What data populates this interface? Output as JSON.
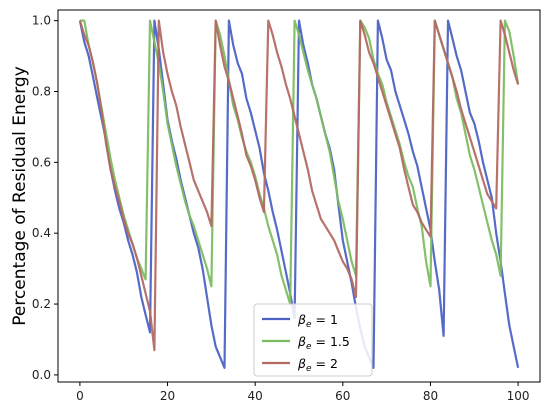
{
  "chart_data": {
    "type": "line",
    "title": "",
    "xlabel": "",
    "ylabel": "Percentage of Residual Energy",
    "xlim": [
      -5,
      105
    ],
    "ylim": [
      -0.02,
      1.03
    ],
    "xticks": [
      0,
      20,
      40,
      60,
      80,
      100
    ],
    "yticks": [
      0.0,
      0.2,
      0.4,
      0.6,
      0.8,
      1.0
    ],
    "xtick_labels": [
      "0",
      "20",
      "40",
      "60",
      "80",
      "100"
    ],
    "ytick_labels": [
      "0.0",
      "0.2",
      "0.4",
      "0.6",
      "0.8",
      "1.0"
    ],
    "grid": false,
    "legend_position": "lower-center",
    "series": [
      {
        "name": "β_e = 1",
        "legend_main": "β",
        "legend_sub": "e",
        "legend_rest": " = 1",
        "color": "#4c63c4",
        "x": [
          0,
          1,
          2,
          3,
          4,
          5,
          6,
          7,
          8,
          9,
          10,
          11,
          12,
          13,
          14,
          15,
          16,
          17,
          18,
          19,
          20,
          21,
          22,
          23,
          24,
          25,
          26,
          27,
          28,
          29,
          30,
          31,
          32,
          33,
          34,
          35,
          36,
          37,
          38,
          39,
          40,
          41,
          42,
          43,
          44,
          45,
          46,
          47,
          48,
          49,
          50,
          51,
          52,
          53,
          54,
          55,
          56,
          57,
          58,
          59,
          60,
          61,
          62,
          63,
          64,
          65,
          66,
          67,
          68,
          69,
          70,
          71,
          72,
          73,
          74,
          75,
          76,
          77,
          78,
          79,
          80,
          81,
          82,
          83,
          84,
          85,
          86,
          87,
          88,
          89,
          90,
          91,
          92,
          93,
          94,
          95,
          96,
          97,
          98,
          99,
          100
        ],
        "y": [
          1.0,
          0.94,
          0.9,
          0.84,
          0.78,
          0.72,
          0.66,
          0.58,
          0.52,
          0.47,
          0.43,
          0.38,
          0.34,
          0.29,
          0.22,
          0.17,
          0.12,
          1.0,
          0.92,
          0.82,
          0.72,
          0.66,
          0.61,
          0.55,
          0.5,
          0.45,
          0.4,
          0.36,
          0.3,
          0.22,
          0.14,
          0.08,
          0.05,
          0.02,
          1.0,
          0.93,
          0.88,
          0.85,
          0.78,
          0.74,
          0.69,
          0.64,
          0.57,
          0.52,
          0.46,
          0.41,
          0.35,
          0.29,
          0.23,
          0.16,
          1.0,
          0.93,
          0.88,
          0.82,
          0.78,
          0.73,
          0.68,
          0.64,
          0.58,
          0.48,
          0.38,
          0.32,
          0.26,
          0.19,
          0.13,
          0.08,
          0.05,
          0.02,
          1.0,
          0.95,
          0.89,
          0.86,
          0.8,
          0.76,
          0.72,
          0.68,
          0.63,
          0.59,
          0.53,
          0.47,
          0.41,
          0.32,
          0.24,
          0.11,
          1.0,
          0.95,
          0.9,
          0.86,
          0.8,
          0.74,
          0.71,
          0.66,
          0.6,
          0.55,
          0.5,
          0.4,
          0.32,
          0.23,
          0.14,
          0.08,
          0.02
        ]
      },
      {
        "name": "β_e = 1.5",
        "legend_main": "β",
        "legend_sub": "e",
        "legend_rest": " = 1.5",
        "color": "#7dbd62",
        "x": [
          0,
          1,
          2,
          3,
          4,
          5,
          6,
          7,
          8,
          9,
          10,
          11,
          12,
          13,
          14,
          15,
          16,
          17,
          18,
          19,
          20,
          21,
          22,
          23,
          24,
          25,
          26,
          27,
          28,
          29,
          30,
          31,
          32,
          33,
          34,
          35,
          36,
          37,
          38,
          39,
          40,
          41,
          42,
          43,
          44,
          45,
          46,
          47,
          48,
          49,
          50,
          51,
          52,
          53,
          54,
          55,
          56,
          57,
          58,
          59,
          60,
          61,
          62,
          63,
          64,
          65,
          66,
          67,
          68,
          69,
          70,
          71,
          72,
          73,
          74,
          75,
          76,
          77,
          78,
          79,
          80,
          81,
          82,
          83,
          84,
          85,
          86,
          87,
          88,
          89,
          90,
          91,
          92,
          93,
          94,
          95,
          96,
          97,
          98,
          99,
          100
        ],
        "y": [
          1.0,
          1.0,
          0.93,
          0.88,
          0.82,
          0.75,
          0.68,
          0.61,
          0.55,
          0.5,
          0.45,
          0.41,
          0.37,
          0.33,
          0.3,
          0.27,
          1.0,
          0.94,
          0.88,
          0.8,
          0.71,
          0.65,
          0.59,
          0.54,
          0.49,
          0.45,
          0.42,
          0.38,
          0.34,
          0.3,
          0.25,
          1.0,
          0.96,
          0.9,
          0.83,
          0.76,
          0.72,
          0.67,
          0.63,
          0.6,
          0.56,
          0.51,
          0.47,
          0.42,
          0.38,
          0.34,
          0.28,
          0.24,
          0.2,
          1.0,
          0.96,
          0.91,
          0.86,
          0.82,
          0.78,
          0.73,
          0.68,
          0.63,
          0.56,
          0.49,
          0.44,
          0.38,
          0.32,
          0.28,
          1.0,
          0.98,
          0.95,
          0.89,
          0.85,
          0.82,
          0.77,
          0.73,
          0.69,
          0.65,
          0.6,
          0.56,
          0.53,
          0.47,
          0.42,
          0.32,
          0.25,
          1.0,
          0.96,
          0.92,
          0.88,
          0.84,
          0.78,
          0.74,
          0.68,
          0.62,
          0.58,
          0.53,
          0.48,
          0.43,
          0.38,
          0.34,
          0.28,
          1.0,
          0.97,
          0.9,
          0.82
        ]
      },
      {
        "name": "β_e = 2",
        "legend_main": "β",
        "legend_sub": "e",
        "legend_rest": " = 2",
        "color": "#b36a63",
        "x": [
          0,
          1,
          2,
          3,
          4,
          5,
          6,
          7,
          8,
          9,
          10,
          11,
          12,
          13,
          14,
          15,
          16,
          17,
          18,
          19,
          20,
          21,
          22,
          23,
          24,
          25,
          26,
          27,
          28,
          29,
          30,
          31,
          32,
          33,
          34,
          35,
          36,
          37,
          38,
          39,
          40,
          41,
          42,
          43,
          44,
          45,
          46,
          47,
          48,
          49,
          50,
          51,
          52,
          53,
          54,
          55,
          56,
          57,
          58,
          59,
          60,
          61,
          62,
          63,
          64,
          65,
          66,
          67,
          68,
          69,
          70,
          71,
          72,
          73,
          74,
          75,
          76,
          77,
          78,
          79,
          80,
          81,
          82,
          83,
          84,
          85,
          86,
          87,
          88,
          89,
          90,
          91,
          92,
          93,
          94,
          95,
          96,
          97,
          98,
          99,
          100
        ],
        "y": [
          1.0,
          0.96,
          0.93,
          0.88,
          0.82,
          0.74,
          0.65,
          0.58,
          0.53,
          0.49,
          0.44,
          0.4,
          0.37,
          0.33,
          0.28,
          0.23,
          0.18,
          0.07,
          1.0,
          0.91,
          0.85,
          0.8,
          0.76,
          0.7,
          0.65,
          0.6,
          0.55,
          0.52,
          0.49,
          0.46,
          0.42,
          1.0,
          0.93,
          0.87,
          0.83,
          0.78,
          0.73,
          0.68,
          0.62,
          0.59,
          0.55,
          0.5,
          0.46,
          1.0,
          0.96,
          0.91,
          0.87,
          0.82,
          0.78,
          0.73,
          0.68,
          0.63,
          0.58,
          0.52,
          0.48,
          0.44,
          0.42,
          0.4,
          0.38,
          0.35,
          0.32,
          0.3,
          0.27,
          0.22,
          1.0,
          0.96,
          0.91,
          0.88,
          0.84,
          0.8,
          0.76,
          0.72,
          0.68,
          0.64,
          0.58,
          0.53,
          0.48,
          0.46,
          0.43,
          0.41,
          0.39,
          1.0,
          0.96,
          0.92,
          0.88,
          0.84,
          0.8,
          0.75,
          0.71,
          0.67,
          0.63,
          0.59,
          0.55,
          0.51,
          0.49,
          0.47,
          1.0,
          0.96,
          0.91,
          0.86,
          0.82
        ]
      }
    ]
  }
}
